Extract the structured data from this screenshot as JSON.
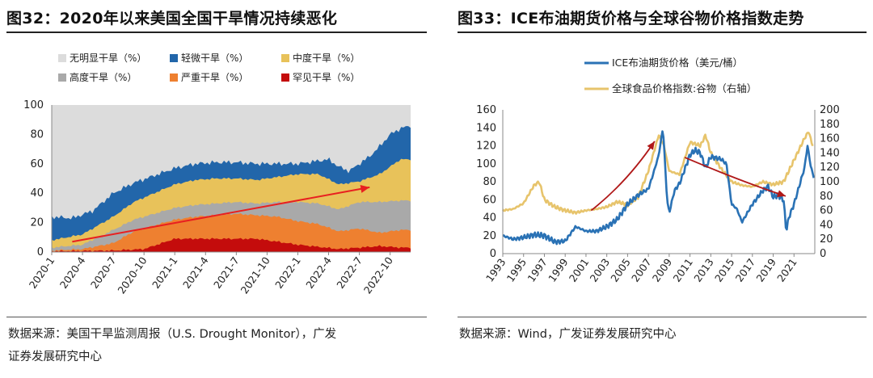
{
  "left_panel": {
    "title": "图32：2020年以来美国全国干旱情况持续恶化",
    "source_line1": "数据来源：美国干旱监测周报（U.S. Drought Monitor），广发",
    "source_line2": "证券发展研究中心"
  },
  "right_panel": {
    "title": "图33：ICE布油期货价格与全球谷物价格指数走势",
    "source": "数据来源：Wind，广发证券发展研究中心"
  },
  "colors": {
    "none": "#dcdcdc",
    "d0": "#2266aa",
    "d1": "#e8c25a",
    "d2": "#a9a9a9",
    "d3": "#ee8030",
    "d4": "#c40c0c",
    "trend_arrow": "#e82020",
    "brent": "#2a72b5",
    "grain": "#e7c46c",
    "annot_arrow": "#b01818"
  },
  "chart_data": [
    {
      "type": "area",
      "stacked": true,
      "legend": [
        {
          "key": "none",
          "label": "无明显干旱（%）"
        },
        {
          "key": "d0",
          "label": "轻微干旱（%）"
        },
        {
          "key": "d1",
          "label": "中度干旱（%）"
        },
        {
          "key": "d2",
          "label": "高度干旱（%）"
        },
        {
          "key": "d3",
          "label": "严重干旱（%）"
        },
        {
          "key": "d4",
          "label": "罕见干旱（%）"
        }
      ],
      "ylim": [
        0,
        100
      ],
      "yticks": [
        0,
        20,
        40,
        60,
        80,
        100
      ],
      "x_ticklabels": [
        "2020-1",
        "2020-4",
        "2020-7",
        "2020-10",
        "2021-1",
        "2021-4",
        "2021-7",
        "2021-10",
        "2022-1",
        "2022-4",
        "2022-7",
        "2022-10"
      ],
      "x_range_months": [
        0,
        35
      ],
      "layers_cumulative": {
        "note": "cumulative tops in %, months since 2020-01",
        "d4": [
          [
            0,
            0.5
          ],
          [
            6,
            1
          ],
          [
            9,
            2
          ],
          [
            12,
            9
          ],
          [
            14,
            9
          ],
          [
            18,
            9
          ],
          [
            20,
            9
          ],
          [
            24,
            5
          ],
          [
            28,
            2
          ],
          [
            30,
            3
          ],
          [
            32,
            4
          ],
          [
            34,
            3
          ]
        ],
        "d3": [
          [
            0,
            1
          ],
          [
            3,
            2
          ],
          [
            6,
            6
          ],
          [
            8,
            14
          ],
          [
            10,
            18
          ],
          [
            12,
            22
          ],
          [
            14,
            24
          ],
          [
            16,
            25
          ],
          [
            18,
            26
          ],
          [
            20,
            25
          ],
          [
            22,
            24
          ],
          [
            24,
            21
          ],
          [
            26,
            19
          ],
          [
            28,
            14
          ],
          [
            30,
            16
          ],
          [
            32,
            13
          ],
          [
            34,
            15
          ]
        ],
        "d2": [
          [
            0,
            3
          ],
          [
            3,
            5
          ],
          [
            6,
            15
          ],
          [
            8,
            22
          ],
          [
            10,
            26
          ],
          [
            12,
            30
          ],
          [
            14,
            32
          ],
          [
            16,
            33
          ],
          [
            18,
            34
          ],
          [
            20,
            33
          ],
          [
            22,
            34
          ],
          [
            24,
            34
          ],
          [
            26,
            33
          ],
          [
            28,
            29
          ],
          [
            30,
            34
          ],
          [
            32,
            34
          ],
          [
            34,
            35
          ]
        ],
        "d1": [
          [
            0,
            8
          ],
          [
            3,
            12
          ],
          [
            6,
            24
          ],
          [
            8,
            34
          ],
          [
            10,
            40
          ],
          [
            12,
            46
          ],
          [
            14,
            49
          ],
          [
            16,
            50
          ],
          [
            18,
            50
          ],
          [
            20,
            49
          ],
          [
            22,
            51
          ],
          [
            24,
            53
          ],
          [
            26,
            53
          ],
          [
            28,
            46
          ],
          [
            30,
            48
          ],
          [
            32,
            53
          ],
          [
            34,
            63
          ]
        ],
        "d0": [
          [
            0,
            24
          ],
          [
            2,
            23
          ],
          [
            4,
            28
          ],
          [
            6,
            40
          ],
          [
            8,
            47
          ],
          [
            10,
            52
          ],
          [
            12,
            57
          ],
          [
            14,
            60
          ],
          [
            16,
            61
          ],
          [
            18,
            61
          ],
          [
            20,
            60
          ],
          [
            22,
            60
          ],
          [
            24,
            60
          ],
          [
            26,
            62
          ],
          [
            27,
            63
          ],
          [
            28,
            58
          ],
          [
            29,
            55
          ],
          [
            30,
            60
          ],
          [
            31,
            65
          ],
          [
            32,
            72
          ],
          [
            33,
            80
          ],
          [
            34,
            84
          ],
          [
            35,
            86
          ]
        ]
      },
      "trend_arrow": {
        "from": [
          2,
          7
        ],
        "to": [
          31,
          44
        ]
      }
    },
    {
      "type": "line",
      "series": [
        {
          "name": "ICE布油期货价格（美元/桶）",
          "axis": "left",
          "points": [
            [
              1993,
              20
            ],
            [
              1994,
              16
            ],
            [
              1995,
              18
            ],
            [
              1996,
              21
            ],
            [
              1997,
              20
            ],
            [
              1998,
              13
            ],
            [
              1999,
              14
            ],
            [
              2000,
              30
            ],
            [
              2001,
              25
            ],
            [
              2002,
              25
            ],
            [
              2003,
              30
            ],
            [
              2004,
              38
            ],
            [
              2005,
              55
            ],
            [
              2006,
              65
            ],
            [
              2007,
              72
            ],
            [
              2007.5,
              90
            ],
            [
              2008,
              110
            ],
            [
              2008.4,
              140
            ],
            [
              2008.8,
              60
            ],
            [
              2009,
              45
            ],
            [
              2009.5,
              70
            ],
            [
              2010,
              78
            ],
            [
              2011,
              110
            ],
            [
              2011.5,
              115
            ],
            [
              2012,
              112
            ],
            [
              2012.5,
              95
            ],
            [
              2013,
              108
            ],
            [
              2014,
              105
            ],
            [
              2014.5,
              100
            ],
            [
              2015,
              55
            ],
            [
              2015.5,
              50
            ],
            [
              2016,
              35
            ],
            [
              2016.5,
              45
            ],
            [
              2017,
              55
            ],
            [
              2018,
              70
            ],
            [
              2018.5,
              75
            ],
            [
              2019,
              63
            ],
            [
              2019.5,
              65
            ],
            [
              2020,
              60
            ],
            [
              2020.25,
              25
            ],
            [
              2020.5,
              40
            ],
            [
              2021,
              55
            ],
            [
              2021.5,
              75
            ],
            [
              2022,
              95
            ],
            [
              2022.3,
              120
            ],
            [
              2022.6,
              98
            ],
            [
              2022.9,
              85
            ]
          ]
        },
        {
          "name": "全球食品价格指数:谷物（右轴）",
          "axis": "right",
          "points": [
            [
              1993,
              60
            ],
            [
              1994,
              62
            ],
            [
              1995,
              70
            ],
            [
              1996,
              95
            ],
            [
              1996.5,
              100
            ],
            [
              1997,
              75
            ],
            [
              1998,
              65
            ],
            [
              1999,
              60
            ],
            [
              2000,
              57
            ],
            [
              2001,
              60
            ],
            [
              2002,
              62
            ],
            [
              2003,
              65
            ],
            [
              2004,
              72
            ],
            [
              2005,
              68
            ],
            [
              2006,
              78
            ],
            [
              2007,
              115
            ],
            [
              2008,
              165
            ],
            [
              2008.5,
              150
            ],
            [
              2009,
              115
            ],
            [
              2010,
              110
            ],
            [
              2011,
              155
            ],
            [
              2012,
              150
            ],
            [
              2012.5,
              165
            ],
            [
              2013,
              140
            ],
            [
              2014,
              118
            ],
            [
              2015,
              100
            ],
            [
              2016,
              95
            ],
            [
              2017,
              93
            ],
            [
              2018,
              100
            ],
            [
              2019,
              96
            ],
            [
              2020,
              100
            ],
            [
              2021,
              130
            ],
            [
              2022,
              160
            ],
            [
              2022.4,
              170
            ],
            [
              2022.8,
              150
            ]
          ]
        }
      ],
      "left_ylim": [
        0,
        160
      ],
      "left_ticks": [
        0,
        20,
        40,
        60,
        80,
        100,
        120,
        140,
        160
      ],
      "right_ylim": [
        0,
        200
      ],
      "right_ticks": [
        0,
        20,
        40,
        60,
        80,
        100,
        120,
        140,
        160,
        180,
        200
      ],
      "x_range": [
        1993,
        2023
      ],
      "x_ticks": [
        1993,
        1995,
        1997,
        1999,
        2001,
        2003,
        2005,
        2007,
        2009,
        2011,
        2013,
        2015,
        2017,
        2019,
        2021
      ],
      "annotation_arrows": [
        {
          "from": [
            2001.5,
            48
          ],
          "via": [
            2005,
            80
          ],
          "to": [
            2007.6,
            125
          ]
        },
        {
          "from": [
            2010.5,
            107
          ],
          "via": [
            2016,
            80
          ],
          "to": [
            2020.2,
            64
          ]
        }
      ]
    }
  ]
}
